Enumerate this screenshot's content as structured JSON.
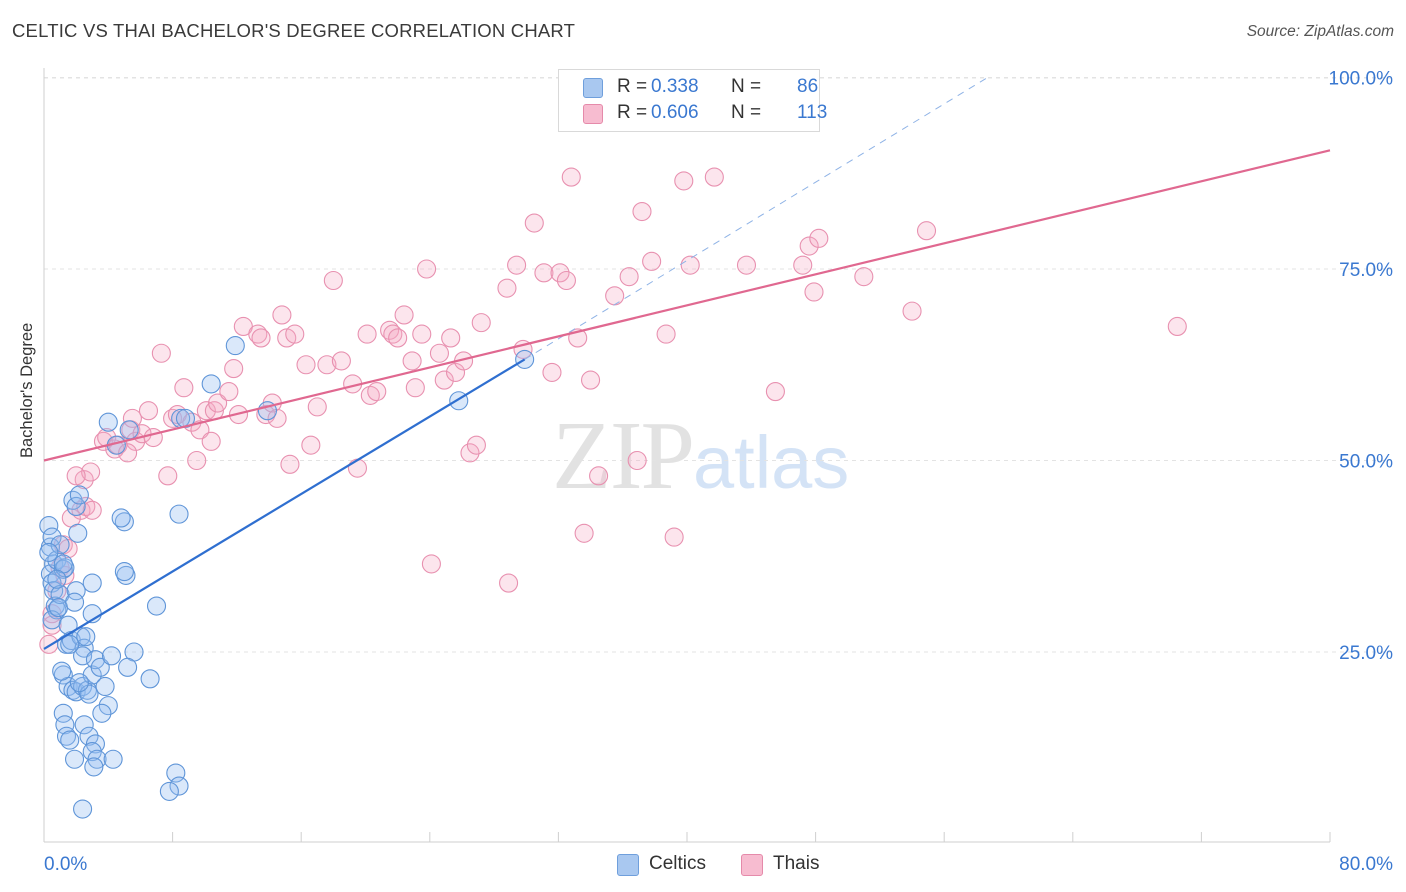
{
  "title": "CELTIC VS THAI BACHELOR'S DEGREE CORRELATION CHART",
  "source": "Source: ZipAtlas.com",
  "watermark": {
    "zip": "ZIP",
    "atlas": "atlas"
  },
  "legend": {
    "rows": [
      {
        "r_label": "R =",
        "r_value": "0.338",
        "n_label": "N =",
        "n_value": "86",
        "color": "#a9c8f0",
        "border": "#6f9fdc"
      },
      {
        "r_label": "R =",
        "r_value": "0.606",
        "n_label": "N =",
        "n_value": "113",
        "color": "#f7bcd0",
        "border": "#e58aaa"
      }
    ]
  },
  "bottom_legend": [
    {
      "label": "Celtics",
      "color": "#a9c8f0",
      "border": "#6f9fdc"
    },
    {
      "label": "Thais",
      "color": "#f7bcd0",
      "border": "#e58aaa"
    }
  ],
  "colors": {
    "celtics_fill": "rgba(150,190,240,0.35)",
    "celtics_stroke": "#5f95d8",
    "celtics_line": "#2f6fd0",
    "thais_fill": "rgba(245,170,195,0.30)",
    "thais_stroke": "#e891b0",
    "thais_line": "#e06890",
    "axis_text": "#3a78d0",
    "grid": "#e3e3e3"
  },
  "chart_data": {
    "type": "scatter",
    "title": "CELTIC VS THAI BACHELOR'S DEGREE CORRELATION CHART",
    "xlabel": "",
    "ylabel": "Bachelor's Degree",
    "xlim": [
      0,
      80
    ],
    "ylim": [
      0,
      104
    ],
    "x_tick_labels": [
      "0.0%",
      "80.0%"
    ],
    "y_ticks": [
      25,
      50,
      75,
      100
    ],
    "y_tick_labels": [
      "25.0%",
      "50.0%",
      "75.0%",
      "100.0%"
    ],
    "grid": true,
    "legend_position": "top-center",
    "series": [
      {
        "name": "Celtics",
        "R": 0.338,
        "N": 86,
        "trend": {
          "x": [
            0,
            29.9
          ],
          "y": [
            25.4,
            63.2
          ]
        },
        "trend_extension": {
          "x": [
            29.9,
            58.7
          ],
          "y": [
            63.2,
            100
          ]
        },
        "points": [
          [
            0.3,
            41.5
          ],
          [
            0.4,
            38.7
          ],
          [
            0.5,
            40.0
          ],
          [
            0.6,
            36.5
          ],
          [
            0.4,
            35.2
          ],
          [
            0.5,
            34.0
          ],
          [
            0.6,
            33.0
          ],
          [
            0.7,
            31.0
          ],
          [
            0.8,
            30.5
          ],
          [
            0.5,
            29.2
          ],
          [
            0.8,
            37.0
          ],
          [
            1.0,
            39.0
          ],
          [
            1.2,
            35.8
          ],
          [
            1.3,
            36.0
          ],
          [
            1.0,
            32.5
          ],
          [
            0.9,
            30.8
          ],
          [
            1.5,
            28.5
          ],
          [
            1.4,
            26.0
          ],
          [
            1.7,
            26.5
          ],
          [
            1.8,
            44.8
          ],
          [
            2.0,
            44.0
          ],
          [
            2.2,
            45.5
          ],
          [
            2.1,
            40.5
          ],
          [
            2.0,
            33.0
          ],
          [
            1.9,
            31.5
          ],
          [
            2.3,
            27.0
          ],
          [
            2.5,
            25.5
          ],
          [
            2.4,
            24.5
          ],
          [
            1.2,
            22.0
          ],
          [
            1.5,
            20.5
          ],
          [
            1.8,
            20.0
          ],
          [
            2.0,
            19.8
          ],
          [
            2.4,
            20.5
          ],
          [
            2.7,
            20.0
          ],
          [
            2.8,
            19.5
          ],
          [
            3.0,
            22.0
          ],
          [
            3.2,
            24.0
          ],
          [
            3.5,
            23.0
          ],
          [
            3.8,
            20.5
          ],
          [
            4.0,
            18.0
          ],
          [
            3.6,
            17.0
          ],
          [
            1.2,
            17.0
          ],
          [
            1.3,
            15.5
          ],
          [
            1.4,
            14.0
          ],
          [
            1.6,
            13.5
          ],
          [
            2.5,
            15.5
          ],
          [
            2.8,
            14.0
          ],
          [
            3.2,
            13.0
          ],
          [
            3.0,
            12.0
          ],
          [
            3.3,
            11.0
          ],
          [
            4.3,
            11.0
          ],
          [
            1.9,
            11.0
          ],
          [
            3.1,
            10.0
          ],
          [
            8.2,
            9.2
          ],
          [
            8.4,
            7.5
          ],
          [
            7.8,
            6.8
          ],
          [
            2.4,
            4.5
          ],
          [
            1.2,
            36.5
          ],
          [
            3.0,
            34.0
          ],
          [
            5.1,
            35.0
          ],
          [
            5.0,
            35.5
          ],
          [
            5.0,
            42.0
          ],
          [
            4.8,
            42.5
          ],
          [
            4.0,
            55.0
          ],
          [
            5.3,
            54.0
          ],
          [
            7.0,
            31.0
          ],
          [
            5.6,
            25.0
          ],
          [
            4.2,
            24.5
          ],
          [
            6.6,
            21.5
          ],
          [
            5.2,
            23.0
          ],
          [
            8.4,
            43.0
          ],
          [
            8.5,
            55.5
          ],
          [
            8.8,
            55.5
          ],
          [
            11.9,
            65.0
          ],
          [
            10.4,
            60.0
          ],
          [
            13.9,
            56.5
          ],
          [
            25.8,
            57.8
          ],
          [
            29.9,
            63.2
          ],
          [
            4.5,
            52.0
          ],
          [
            3.0,
            30.0
          ],
          [
            1.1,
            22.5
          ],
          [
            2.2,
            21.0
          ],
          [
            0.3,
            38.0
          ],
          [
            0.8,
            34.5
          ],
          [
            1.6,
            26.0
          ],
          [
            2.6,
            27.0
          ]
        ]
      },
      {
        "name": "Thais",
        "R": 0.606,
        "N": 113,
        "trend": {
          "x": [
            0,
            80
          ],
          "y": [
            50.0,
            90.5
          ]
        },
        "points": [
          [
            0.3,
            26.0
          ],
          [
            0.5,
            30.0
          ],
          [
            0.8,
            33.0
          ],
          [
            1.0,
            36.0
          ],
          [
            1.2,
            39.0
          ],
          [
            1.5,
            38.5
          ],
          [
            1.7,
            42.5
          ],
          [
            2.3,
            43.5
          ],
          [
            2.6,
            44.0
          ],
          [
            3.0,
            43.5
          ],
          [
            2.5,
            47.5
          ],
          [
            2.9,
            48.5
          ],
          [
            3.7,
            52.5
          ],
          [
            3.9,
            53.0
          ],
          [
            4.4,
            51.5
          ],
          [
            4.6,
            52.0
          ],
          [
            5.4,
            54.0
          ],
          [
            5.5,
            55.5
          ],
          [
            5.7,
            52.5
          ],
          [
            6.1,
            53.5
          ],
          [
            6.5,
            56.5
          ],
          [
            6.8,
            53.0
          ],
          [
            7.3,
            64.0
          ],
          [
            7.7,
            48.0
          ],
          [
            8.0,
            55.5
          ],
          [
            8.3,
            56.0
          ],
          [
            8.7,
            59.5
          ],
          [
            9.2,
            55.0
          ],
          [
            9.5,
            50.0
          ],
          [
            9.7,
            54.0
          ],
          [
            10.1,
            56.5
          ],
          [
            10.4,
            52.5
          ],
          [
            10.6,
            56.5
          ],
          [
            10.8,
            57.5
          ],
          [
            11.5,
            59.0
          ],
          [
            11.8,
            62.0
          ],
          [
            12.1,
            56.0
          ],
          [
            12.4,
            67.5
          ],
          [
            13.3,
            66.5
          ],
          [
            13.5,
            66.0
          ],
          [
            13.8,
            56.0
          ],
          [
            14.2,
            57.5
          ],
          [
            14.5,
            55.5
          ],
          [
            14.8,
            69.0
          ],
          [
            15.1,
            66.0
          ],
          [
            15.6,
            66.5
          ],
          [
            15.3,
            49.5
          ],
          [
            16.3,
            62.5
          ],
          [
            16.6,
            52.0
          ],
          [
            17.0,
            57.0
          ],
          [
            17.6,
            62.5
          ],
          [
            18.0,
            73.5
          ],
          [
            18.5,
            63.0
          ],
          [
            19.2,
            60.0
          ],
          [
            19.5,
            49.0
          ],
          [
            20.1,
            66.5
          ],
          [
            20.3,
            58.5
          ],
          [
            20.7,
            59.0
          ],
          [
            21.5,
            67.0
          ],
          [
            21.7,
            66.5
          ],
          [
            22.0,
            66.0
          ],
          [
            22.4,
            69.0
          ],
          [
            22.9,
            63.0
          ],
          [
            23.1,
            59.5
          ],
          [
            23.5,
            66.5
          ],
          [
            23.8,
            75.0
          ],
          [
            24.1,
            36.5
          ],
          [
            24.6,
            64.0
          ],
          [
            24.9,
            60.5
          ],
          [
            25.3,
            66.0
          ],
          [
            25.6,
            61.5
          ],
          [
            26.1,
            63.0
          ],
          [
            26.5,
            51.0
          ],
          [
            26.9,
            52.0
          ],
          [
            27.2,
            68.0
          ],
          [
            28.8,
            72.5
          ],
          [
            28.9,
            34.0
          ],
          [
            29.4,
            75.5
          ],
          [
            29.8,
            64.5
          ],
          [
            30.5,
            81.0
          ],
          [
            31.1,
            74.5
          ],
          [
            31.6,
            61.5
          ],
          [
            32.1,
            74.5
          ],
          [
            32.5,
            73.5
          ],
          [
            32.8,
            87.0
          ],
          [
            33.2,
            66.0
          ],
          [
            33.6,
            40.5
          ],
          [
            34.0,
            60.5
          ],
          [
            34.5,
            48.0
          ],
          [
            35.5,
            71.5
          ],
          [
            36.4,
            74.0
          ],
          [
            36.9,
            50.0
          ],
          [
            37.2,
            82.5
          ],
          [
            37.8,
            76.0
          ],
          [
            38.7,
            66.5
          ],
          [
            39.2,
            40.0
          ],
          [
            39.8,
            86.5
          ],
          [
            40.2,
            75.5
          ],
          [
            41.7,
            87.0
          ],
          [
            43.7,
            75.5
          ],
          [
            45.5,
            59.0
          ],
          [
            47.2,
            75.5
          ],
          [
            47.6,
            78.0
          ],
          [
            47.9,
            72.0
          ],
          [
            48.2,
            79.0
          ],
          [
            51.0,
            74.0
          ],
          [
            54.0,
            69.5
          ],
          [
            54.9,
            80.0
          ],
          [
            70.5,
            67.5
          ],
          [
            0.5,
            28.5
          ],
          [
            1.3,
            35.0
          ],
          [
            2.0,
            48.0
          ],
          [
            5.2,
            51.0
          ]
        ]
      }
    ]
  }
}
